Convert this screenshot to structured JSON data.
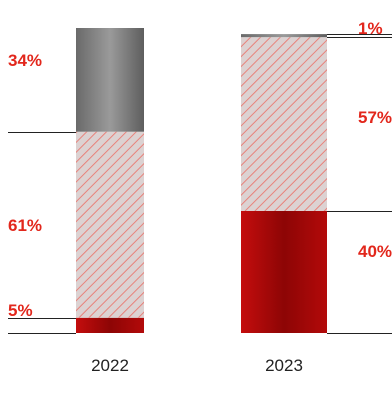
{
  "chart_data": {
    "type": "bar",
    "stacked": true,
    "categories": [
      "2022",
      "2023"
    ],
    "series": [
      {
        "values": [
          5,
          40
        ]
      },
      {
        "values": [
          61,
          57
        ]
      },
      {
        "values": [
          34,
          1
        ]
      }
    ],
    "data_labels": [
      [
        "5%",
        "61%",
        "34%"
      ],
      [
        "40%",
        "57%",
        "1%"
      ]
    ],
    "ylim": [
      0,
      100
    ],
    "title": "",
    "xlabel": "",
    "ylabel": "",
    "legend": "none",
    "grid": false
  },
  "colors": {
    "label": "#e2271c",
    "segment_dark_red": "#a80808",
    "segment_hatched": "#dcd2d2",
    "hatch": "#e8827b",
    "segment_gray": "#7c7c7c",
    "leader_line": "#222222",
    "year_text": "#222222"
  }
}
